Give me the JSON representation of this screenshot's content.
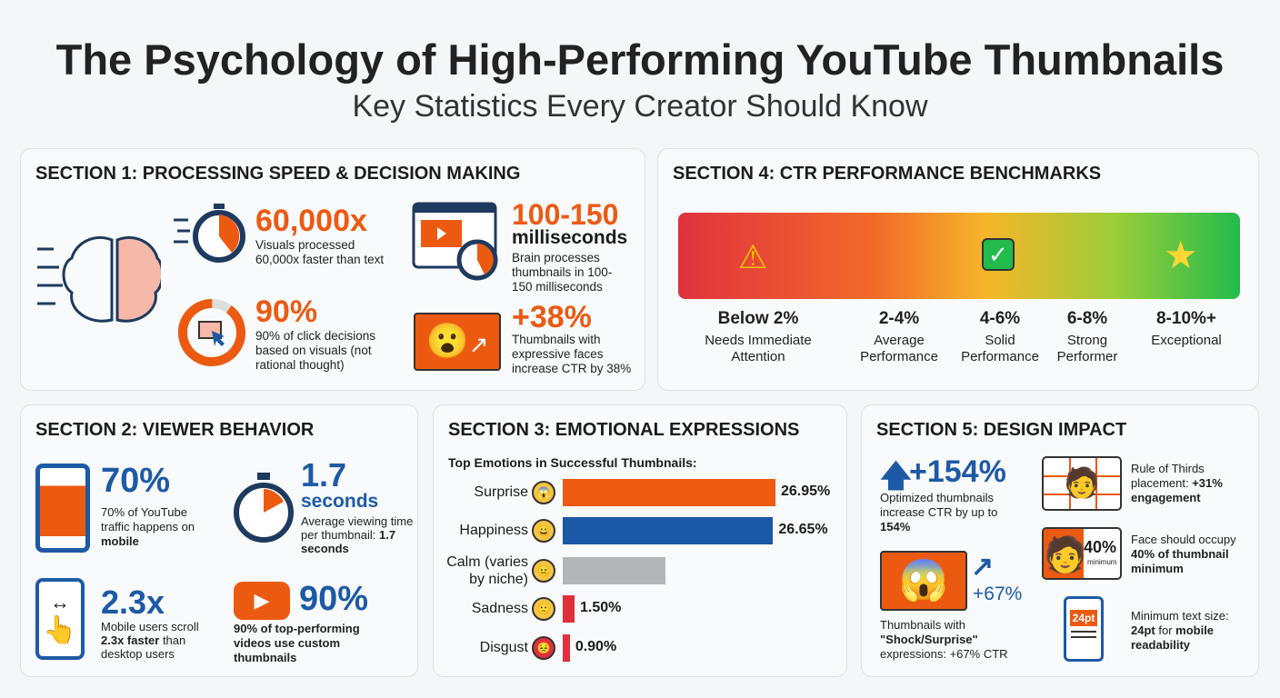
{
  "header": {
    "title": "The Psychology of High-Performing YouTube Thumbnails",
    "subtitle": "Key Statistics Every Creator Should Know"
  },
  "section1": {
    "title": "SECTION 1: PROCESSING SPEED & DECISION MAKING",
    "stats": [
      {
        "value": "60,000x",
        "desc": "Visuals processed 60,000x faster than text",
        "icon": "stopwatch-icon"
      },
      {
        "value": "100-150",
        "unit": "milliseconds",
        "desc": "Brain processes thumbnails in 100-150 milliseconds",
        "icon": "browser-stopwatch-icon"
      },
      {
        "value": "90%",
        "desc": "90% of click decisions based on visuals (not rational thought)",
        "icon": "donut-click-icon"
      },
      {
        "value": "+38%",
        "desc": "Thumbnails with expressive faces increase CTR by 38%",
        "icon": "surprised-face-icon"
      }
    ]
  },
  "section4": {
    "title": "SECTION 4: CTR PERFORMANCE BENCHMARKS",
    "bands": [
      {
        "range": "Below 2%",
        "label": "Needs Immediate Attention",
        "color": "#e0323e"
      },
      {
        "range": "2-4%",
        "label": "Average Performance",
        "color": "#f26a2a"
      },
      {
        "range": "4-6%",
        "label": "Solid Performance",
        "color": "#f6b62a"
      },
      {
        "range": "6-8%",
        "label": "Strong Performer",
        "color": "#9acd3a"
      },
      {
        "range": "8-10%+",
        "label": "Exceptional",
        "color": "#22bb4c"
      }
    ]
  },
  "section2": {
    "title": "SECTION 2: VIEWER BEHAVIOR",
    "stats": [
      {
        "value": "70%",
        "desc_a": "70% of YouTube traffic happens on ",
        "desc_b": "mobile"
      },
      {
        "value": "1.7",
        "unit": "seconds",
        "desc_a": "Average viewing time per thumbnail: ",
        "desc_b": "1.7 seconds"
      },
      {
        "value": "2.3x",
        "desc_a": "Mobile users scroll ",
        "desc_b": "2.3x faster",
        "desc_c": " than desktop users"
      },
      {
        "value": "90%",
        "desc_b": "90% of top-performing videos use custom thumbnails"
      }
    ]
  },
  "section3": {
    "title": "SECTION 3: EMOTIONAL EXPRESSIONS"
  },
  "chart_data": {
    "type": "bar",
    "orientation": "horizontal",
    "title": "Top Emotions in Successful Thumbnails:",
    "categories": [
      "Surprise",
      "Happiness",
      "Calm (varies by niche)",
      "Sadness",
      "Disgust"
    ],
    "values": [
      26.95,
      26.65,
      13,
      1.5,
      0.9
    ],
    "value_labels": [
      "26.95%",
      "26.65%",
      "",
      "1.50%",
      "0.90%"
    ],
    "colors": [
      "#ee5a12",
      "#1b58a5",
      "#b3b5b7",
      "#e0303c",
      "#e0303c"
    ],
    "emojis": [
      "😱",
      "😀",
      "😐",
      "🙁",
      "😣"
    ]
  },
  "section5": {
    "title": "SECTION 5: DESIGN IMPACT",
    "main_value": "+154%",
    "main_desc_a": "Optimized thumbnails increase CTR by up to ",
    "main_desc_b": "154%",
    "shock_value": "+67%",
    "shock_desc_a": "Thumbnails with ",
    "shock_desc_b": "\"Shock/Surprise\"",
    "shock_desc_c": " expressions: +67% CTR",
    "thirds_a": "Rule of Thirds placement: ",
    "thirds_b": "+31% engagement",
    "face_badge": "40%",
    "face_badge_sub": "minimum",
    "face_a": "Face should occupy ",
    "face_b": "40% of thumbnail minimum",
    "text_badge": "24pt",
    "text_a": "Minimum text size: ",
    "text_b": "24pt",
    "text_c": " for ",
    "text_d": "mobile readability"
  }
}
